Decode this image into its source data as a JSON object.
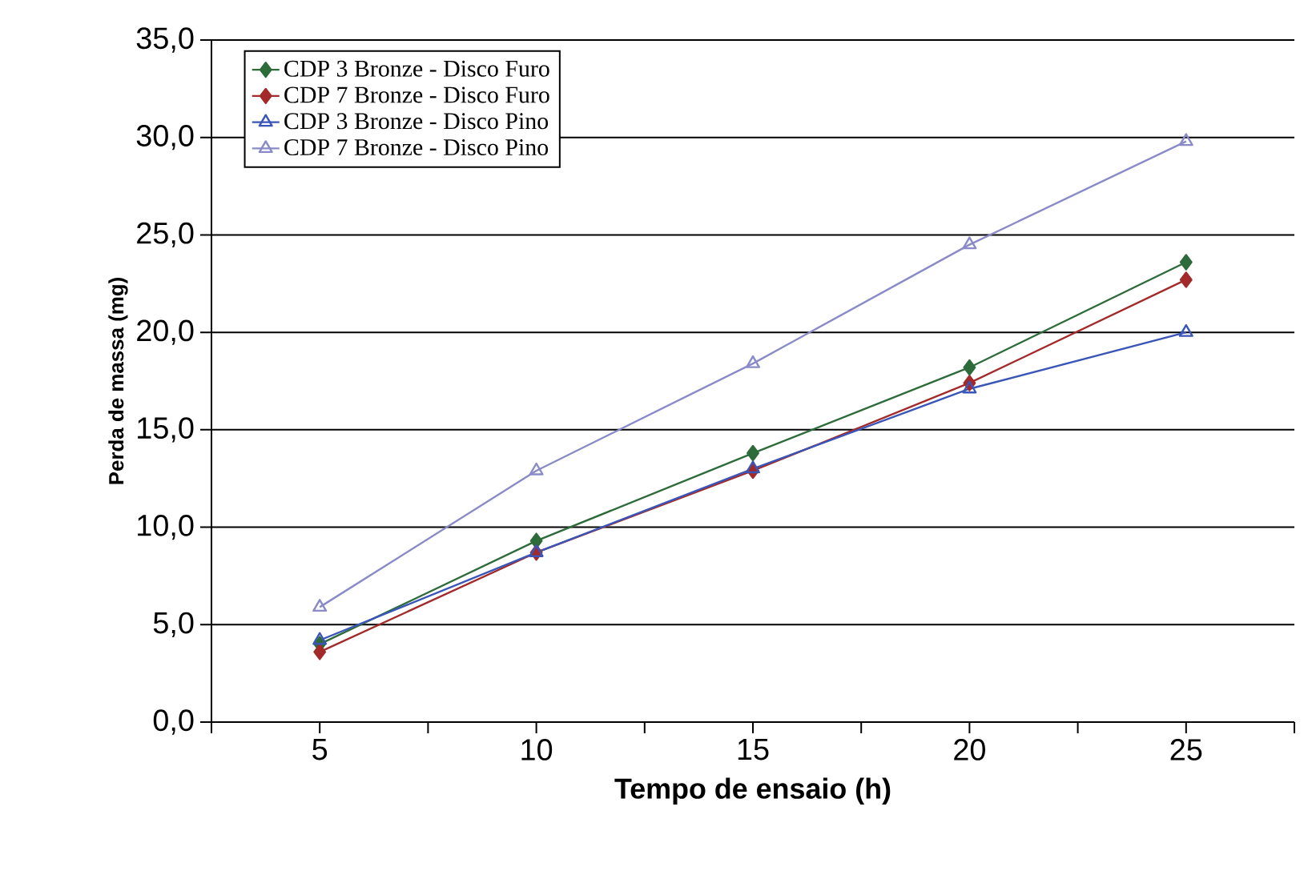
{
  "chart_data": {
    "type": "line",
    "xlabel": "Tempo de ensaio (h)",
    "ylabel": "Perda de massa (mg)",
    "categories": [
      "5",
      "10",
      "15",
      "20",
      "25"
    ],
    "series": [
      {
        "name": "CDP 3 Bronze - Disco Furo",
        "color": "#2e6b3a",
        "marker": "diamond",
        "values": [
          4.0,
          9.3,
          13.8,
          18.2,
          23.6
        ]
      },
      {
        "name": "CDP 7 Bronze - Disco Furo",
        "color": "#a32a2a",
        "marker": "diamond",
        "values": [
          3.6,
          8.7,
          12.9,
          17.4,
          22.7
        ]
      },
      {
        "name": "CDP 3 Bronze - Disco Pino",
        "color": "#3a55b8",
        "marker": "triangle",
        "values": [
          4.2,
          8.7,
          13.0,
          17.1,
          20.0
        ]
      },
      {
        "name": "CDP 7 Bronze - Disco Pino",
        "color": "#8a8ac8",
        "marker": "triangle",
        "values": [
          5.9,
          12.9,
          18.4,
          24.5,
          29.8
        ]
      }
    ],
    "ylim": [
      0,
      35
    ],
    "yticks": [
      {
        "value": 0,
        "label": "0,0"
      },
      {
        "value": 5,
        "label": "5,0"
      },
      {
        "value": 10,
        "label": "10,0"
      },
      {
        "value": 15,
        "label": "15,0"
      },
      {
        "value": 20,
        "label": "20,0"
      },
      {
        "value": 25,
        "label": "25,0"
      },
      {
        "value": 30,
        "label": "30,0"
      },
      {
        "value": 35,
        "label": "35,0"
      }
    ],
    "grid": "y",
    "legend": "top left"
  }
}
